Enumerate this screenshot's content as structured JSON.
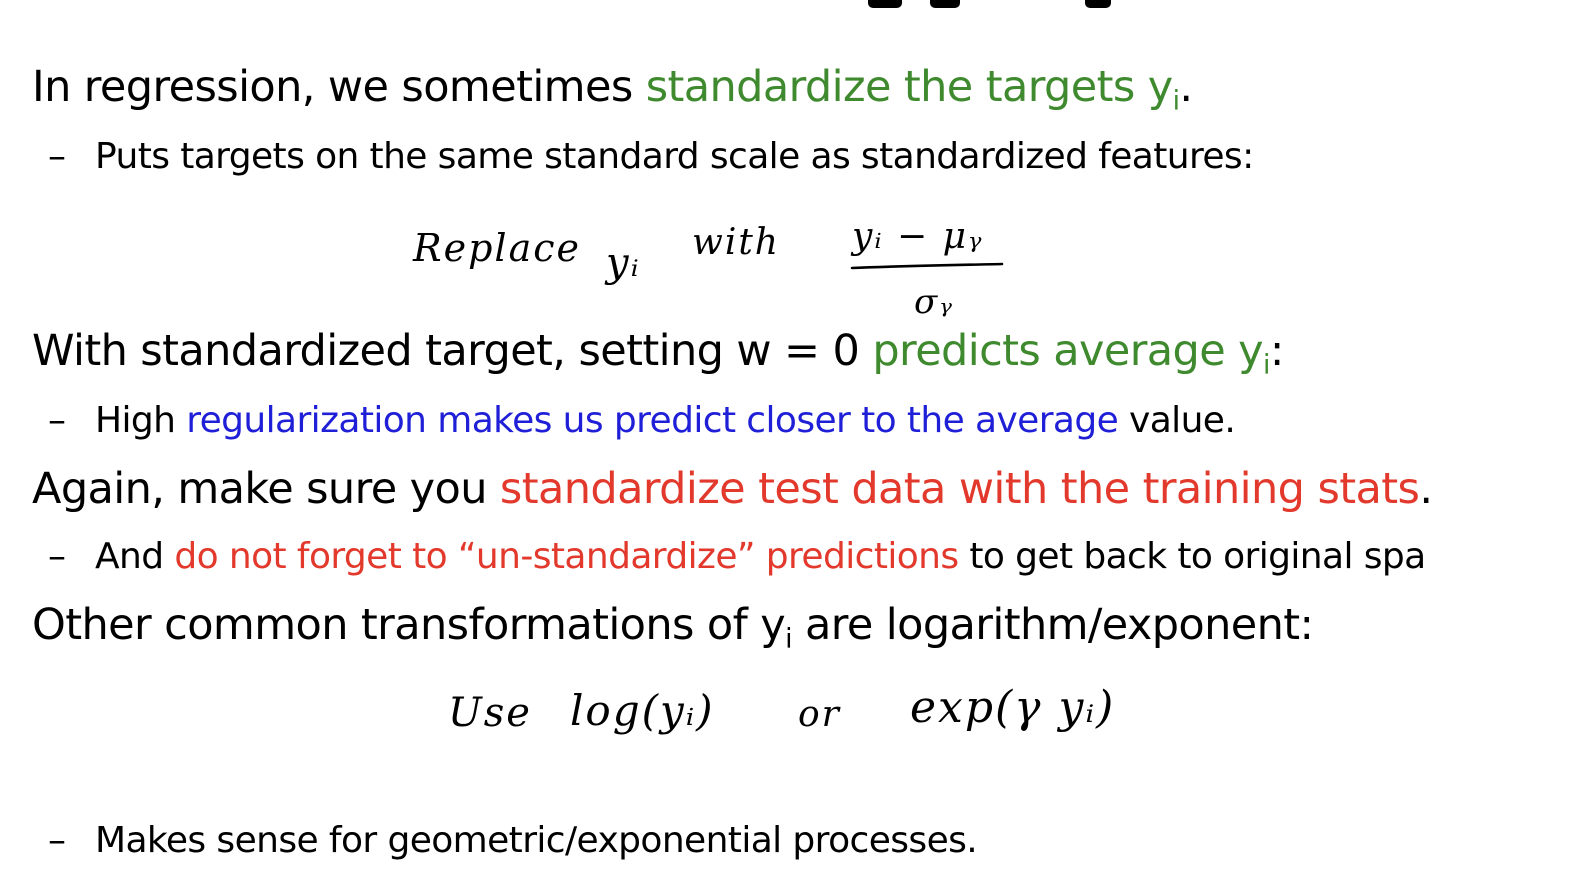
{
  "bullets": [
    {
      "level": 1,
      "segments": [
        {
          "text": "In regression, we sometimes ",
          "color": "black"
        },
        {
          "text": "standardize the targets y",
          "color": "green"
        },
        {
          "text": "i",
          "color": "green",
          "sub": true
        },
        {
          "text": ".",
          "color": "black"
        }
      ]
    },
    {
      "level": 2,
      "segments": [
        {
          "text": "Puts targets on the same standard scale as standardized features:",
          "color": "black"
        }
      ]
    },
    {
      "level": 1,
      "segments": [
        {
          "text": "With standardized target, setting w = 0 ",
          "color": "black"
        },
        {
          "text": "predicts average y",
          "color": "green"
        },
        {
          "text": "i",
          "color": "green",
          "sub": true
        },
        {
          "text": ":",
          "color": "black"
        }
      ]
    },
    {
      "level": 2,
      "segments": [
        {
          "text": "High ",
          "color": "black"
        },
        {
          "text": "regularization makes us predict closer to the average",
          "color": "blue"
        },
        {
          "text": " value.",
          "color": "black"
        }
      ]
    },
    {
      "level": 1,
      "segments": [
        {
          "text": "Again, make sure you ",
          "color": "black"
        },
        {
          "text": "standardize test data with the training stats",
          "color": "red"
        },
        {
          "text": ".",
          "color": "black"
        }
      ]
    },
    {
      "level": 2,
      "segments": [
        {
          "text": "And ",
          "color": "black"
        },
        {
          "text": "do not forget to “un-standardize” predictions",
          "color": "red"
        },
        {
          "text": " to get back to original spa",
          "color": "black"
        }
      ]
    },
    {
      "level": 1,
      "segments": [
        {
          "text": "Other common transformations of y",
          "color": "black"
        },
        {
          "text": "i",
          "color": "black",
          "sub": true
        },
        {
          "text": " are logarithm/exponent:",
          "color": "black"
        }
      ]
    },
    {
      "level": 2,
      "segments": [
        {
          "text": "Makes sense for geometric/exponential processes.",
          "color": "black"
        }
      ]
    }
  ],
  "dash": "–",
  "handwriting": {
    "replace_note": {
      "replace": "Replace",
      "yi": "yᵢ",
      "with": "with",
      "numerator": "yᵢ − μᵧ",
      "denominator": "σᵧ"
    },
    "transform_note": {
      "use": "Use",
      "log": "log(yᵢ)",
      "or": "or",
      "exp": "exp(γ yᵢ)"
    }
  },
  "colors": {
    "black": "#000000",
    "green": "#3f8a2e",
    "blue": "#1f1fd8",
    "red": "#e2392c"
  }
}
